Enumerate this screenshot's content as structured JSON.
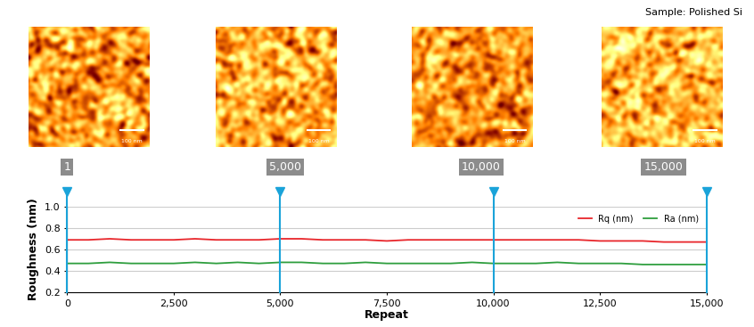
{
  "chart_data": {
    "type": "line",
    "title": "Sample: Polished Si",
    "x": [
      0,
      500,
      1000,
      1500,
      2000,
      2500,
      3000,
      3500,
      4000,
      4500,
      5000,
      5500,
      6000,
      6500,
      7000,
      7500,
      8000,
      8500,
      9000,
      9500,
      10000,
      10500,
      11000,
      11500,
      12000,
      12500,
      13000,
      13500,
      14000,
      14500,
      15000
    ],
    "series": [
      {
        "name": "Rq (nm)",
        "color": "#e8262b",
        "values": [
          0.69,
          0.69,
          0.7,
          0.69,
          0.69,
          0.69,
          0.7,
          0.69,
          0.69,
          0.69,
          0.7,
          0.7,
          0.69,
          0.69,
          0.69,
          0.68,
          0.69,
          0.69,
          0.69,
          0.69,
          0.69,
          0.69,
          0.69,
          0.69,
          0.69,
          0.68,
          0.68,
          0.68,
          0.67,
          0.67,
          0.67
        ]
      },
      {
        "name": "Ra (nm)",
        "color": "#2e9e3e",
        "values": [
          0.47,
          0.47,
          0.48,
          0.47,
          0.47,
          0.47,
          0.48,
          0.47,
          0.48,
          0.47,
          0.48,
          0.48,
          0.47,
          0.47,
          0.48,
          0.47,
          0.47,
          0.47,
          0.47,
          0.48,
          0.47,
          0.47,
          0.47,
          0.48,
          0.47,
          0.47,
          0.47,
          0.46,
          0.46,
          0.46,
          0.46
        ]
      }
    ],
    "x_label": "Repeat",
    "y_label": "Roughness (nm)",
    "xlim": [
      0,
      15000
    ],
    "ylim": [
      0.2,
      1.0
    ],
    "xticks": [
      0,
      {
        "value": 2500,
        "label": "2,500"
      },
      {
        "value": 5000,
        "label": "5,000"
      },
      {
        "value": 7500,
        "label": "7,500"
      },
      {
        "value": 10000,
        "label": "10,000"
      },
      {
        "value": 12500,
        "label": "12,500"
      },
      {
        "value": 15000,
        "label": "15,000"
      }
    ],
    "yticks": [
      0.2,
      0.4,
      0.6,
      0.8,
      1.0
    ],
    "grid": true,
    "legend": "upper right",
    "image_markers": [
      {
        "value": 1,
        "label": "1"
      },
      {
        "value": 5000,
        "label": "5,000"
      },
      {
        "value": 10000,
        "label": "10,000"
      },
      {
        "value": 15000,
        "label": "15,000"
      }
    ],
    "scale_bar": "100 nm"
  }
}
